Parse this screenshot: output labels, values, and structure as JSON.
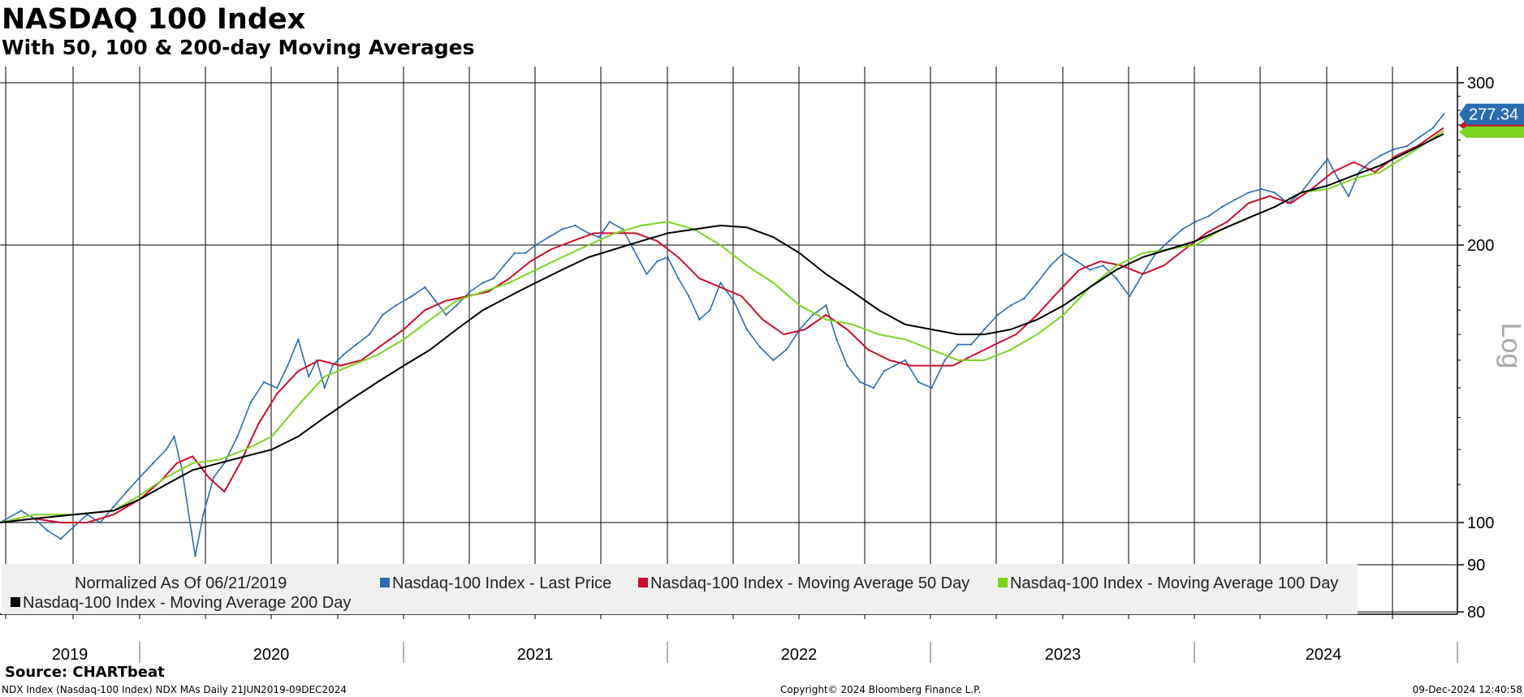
{
  "header": {
    "title": "NASDAQ 100 Index",
    "subtitle": "With 50, 100 & 200-day Moving Averages"
  },
  "footer": {
    "source": "Source: CHARTbeat",
    "left_note": "NDX Index (Nasdaq-100 Index) NDX MAs  Daily 21JUN2019-09DEC2024",
    "copyright": "Copyright© 2024 Bloomberg Finance L.P.",
    "timestamp": "09-Dec-2024 12:40:58"
  },
  "legend": {
    "note": "Normalized As Of 06/21/2019"
  },
  "colors": {
    "last_price": "#2b6cb0",
    "ma50": "#c8102e",
    "ma100": "#7ed321",
    "ma200": "#000000",
    "grid": "#000000",
    "legend_bg": "#f0f0f0"
  },
  "chart_data": {
    "type": "line",
    "title": "NASDAQ 100 Index",
    "subtitle": "With 50, 100 & 200-day Moving Averages",
    "xlabel": "",
    "ylabel": "Log",
    "y_scale": "log",
    "ylim": [
      78,
      308
    ],
    "y_ticks": [
      80,
      90,
      100,
      200,
      300
    ],
    "x_range": [
      2019.47,
      2024.94
    ],
    "x_year_labels": [
      "2019",
      "2020",
      "2021",
      "2022",
      "2023",
      "2024"
    ],
    "grid": true,
    "legend_position": "bottom-left",
    "last_value_label": "277.34",
    "series": [
      {
        "name": "Nasdaq-100 Index - Last Price",
        "x": [
          2019.47,
          2019.55,
          2019.6,
          2019.65,
          2019.7,
          2019.75,
          2019.8,
          2019.85,
          2019.9,
          2019.95,
          2020.0,
          2020.05,
          2020.1,
          2020.13,
          2020.16,
          2020.19,
          2020.21,
          2020.24,
          2020.28,
          2020.32,
          2020.37,
          2020.42,
          2020.47,
          2020.52,
          2020.56,
          2020.6,
          2020.64,
          2020.67,
          2020.7,
          2020.73,
          2020.77,
          2020.82,
          2020.87,
          2020.92,
          2020.97,
          2021.03,
          2021.08,
          2021.12,
          2021.16,
          2021.2,
          2021.25,
          2021.3,
          2021.34,
          2021.38,
          2021.42,
          2021.46,
          2021.5,
          2021.55,
          2021.6,
          2021.65,
          2021.7,
          2021.74,
          2021.78,
          2021.83,
          2021.87,
          2021.92,
          2021.96,
          2022.0,
          2022.04,
          2022.08,
          2022.12,
          2022.16,
          2022.2,
          2022.25,
          2022.3,
          2022.35,
          2022.4,
          2022.45,
          2022.5,
          2022.55,
          2022.6,
          2022.64,
          2022.68,
          2022.73,
          2022.78,
          2022.82,
          2022.86,
          2022.9,
          2022.95,
          2023.0,
          2023.05,
          2023.1,
          2023.15,
          2023.2,
          2023.25,
          2023.3,
          2023.35,
          2023.4,
          2023.45,
          2023.5,
          2023.55,
          2023.6,
          2023.65,
          2023.7,
          2023.75,
          2023.8,
          2023.85,
          2023.9,
          2023.95,
          2024.0,
          2024.05,
          2024.1,
          2024.15,
          2024.2,
          2024.25,
          2024.3,
          2024.35,
          2024.4,
          2024.45,
          2024.5,
          2024.54,
          2024.58,
          2024.62,
          2024.66,
          2024.7,
          2024.75,
          2024.8,
          2024.85,
          2024.9,
          2024.94
        ],
        "values": [
          100,
          103,
          101,
          98,
          96,
          99,
          102,
          100,
          104,
          108,
          112,
          116,
          120,
          124,
          114,
          100,
          92,
          102,
          112,
          116,
          124,
          135,
          142,
          140,
          148,
          158,
          144,
          150,
          140,
          148,
          152,
          156,
          160,
          168,
          172,
          176,
          180,
          174,
          168,
          172,
          178,
          182,
          184,
          190,
          196,
          196,
          200,
          204,
          208,
          210,
          206,
          204,
          212,
          208,
          198,
          186,
          192,
          194,
          184,
          176,
          166,
          170,
          182,
          174,
          162,
          155,
          150,
          154,
          162,
          168,
          172,
          158,
          148,
          142,
          140,
          146,
          148,
          150,
          142,
          140,
          150,
          156,
          156,
          162,
          168,
          172,
          175,
          182,
          190,
          196,
          192,
          188,
          190,
          184,
          176,
          186,
          196,
          202,
          208,
          212,
          215,
          220,
          224,
          228,
          230,
          228,
          222,
          228,
          238,
          248,
          236,
          226,
          240,
          246,
          250,
          254,
          256,
          262,
          268,
          277.34
        ]
      },
      {
        "name": "Nasdaq-100 Index - Moving Average 50 Day",
        "x": [
          2019.47,
          2019.6,
          2019.7,
          2019.8,
          2019.9,
          2020.0,
          2020.08,
          2020.14,
          2020.2,
          2020.26,
          2020.32,
          2020.38,
          2020.45,
          2020.52,
          2020.6,
          2020.68,
          2020.76,
          2020.84,
          2020.92,
          2021.0,
          2021.08,
          2021.16,
          2021.24,
          2021.32,
          2021.4,
          2021.48,
          2021.56,
          2021.64,
          2021.72,
          2021.8,
          2021.88,
          2021.96,
          2022.04,
          2022.12,
          2022.2,
          2022.28,
          2022.36,
          2022.44,
          2022.52,
          2022.6,
          2022.68,
          2022.76,
          2022.84,
          2022.92,
          2023.0,
          2023.08,
          2023.16,
          2023.24,
          2023.32,
          2023.4,
          2023.48,
          2023.56,
          2023.64,
          2023.72,
          2023.8,
          2023.88,
          2023.96,
          2024.04,
          2024.12,
          2024.2,
          2024.28,
          2024.36,
          2024.44,
          2024.52,
          2024.6,
          2024.68,
          2024.76,
          2024.84,
          2024.94
        ],
        "values": [
          100,
          101,
          100,
          100,
          102,
          106,
          111,
          116,
          118,
          112,
          108,
          116,
          128,
          138,
          146,
          150,
          148,
          150,
          156,
          162,
          170,
          174,
          176,
          178,
          184,
          192,
          198,
          202,
          206,
          206,
          206,
          202,
          194,
          184,
          180,
          176,
          166,
          160,
          162,
          168,
          162,
          154,
          150,
          148,
          148,
          148,
          152,
          156,
          160,
          168,
          178,
          188,
          192,
          190,
          186,
          190,
          198,
          206,
          212,
          222,
          226,
          222,
          230,
          240,
          246,
          240,
          250,
          256,
          268
        ]
      },
      {
        "name": "Nasdaq-100 Index - Moving Average 100 Day",
        "x": [
          2019.47,
          2019.6,
          2019.75,
          2019.9,
          2020.0,
          2020.1,
          2020.2,
          2020.3,
          2020.4,
          2020.5,
          2020.6,
          2020.7,
          2020.8,
          2020.9,
          2021.0,
          2021.1,
          2021.2,
          2021.3,
          2021.4,
          2021.5,
          2021.6,
          2021.7,
          2021.8,
          2021.9,
          2022.0,
          2022.1,
          2022.2,
          2022.3,
          2022.4,
          2022.5,
          2022.6,
          2022.7,
          2022.8,
          2022.9,
          2023.0,
          2023.1,
          2023.2,
          2023.3,
          2023.4,
          2023.5,
          2023.6,
          2023.7,
          2023.8,
          2023.9,
          2024.0,
          2024.1,
          2024.2,
          2024.3,
          2024.4,
          2024.5,
          2024.6,
          2024.7,
          2024.8,
          2024.94
        ],
        "values": [
          100,
          102,
          102,
          103,
          107,
          112,
          116,
          117,
          120,
          124,
          134,
          144,
          148,
          152,
          158,
          166,
          174,
          178,
          182,
          188,
          194,
          200,
          206,
          210,
          212,
          208,
          200,
          190,
          182,
          172,
          166,
          164,
          160,
          158,
          154,
          150,
          150,
          154,
          160,
          168,
          180,
          190,
          196,
          198,
          200,
          208,
          214,
          220,
          228,
          230,
          236,
          240,
          250,
          266
        ]
      },
      {
        "name": "Nasdaq-100 Index - Moving Average 200 Day",
        "x": [
          2019.47,
          2019.6,
          2019.75,
          2019.9,
          2020.0,
          2020.1,
          2020.2,
          2020.3,
          2020.4,
          2020.5,
          2020.6,
          2020.7,
          2020.8,
          2020.9,
          2021.0,
          2021.1,
          2021.2,
          2021.3,
          2021.4,
          2021.5,
          2021.6,
          2021.7,
          2021.8,
          2021.9,
          2022.0,
          2022.1,
          2022.2,
          2022.3,
          2022.4,
          2022.5,
          2022.6,
          2022.7,
          2022.8,
          2022.9,
          2023.0,
          2023.1,
          2023.2,
          2023.3,
          2023.4,
          2023.5,
          2023.6,
          2023.7,
          2023.8,
          2023.9,
          2024.0,
          2024.1,
          2024.2,
          2024.3,
          2024.4,
          2024.5,
          2024.6,
          2024.7,
          2024.8,
          2024.94
        ],
        "values": [
          100,
          101,
          102,
          103,
          106,
          110,
          114,
          116,
          118,
          120,
          124,
          130,
          136,
          142,
          148,
          154,
          162,
          170,
          176,
          182,
          188,
          194,
          198,
          202,
          206,
          208,
          210,
          209,
          204,
          196,
          186,
          178,
          170,
          164,
          162,
          160,
          160,
          162,
          166,
          172,
          180,
          188,
          194,
          198,
          202,
          208,
          214,
          220,
          228,
          232,
          238,
          244,
          252,
          264
        ]
      }
    ],
    "legend_entries": [
      "Nasdaq-100 Index - Last Price",
      "Nasdaq-100 Index - Moving Average 50 Day",
      "Nasdaq-100 Index - Moving Average 100 Day",
      "Nasdaq-100 Index - Moving Average 200 Day"
    ]
  }
}
